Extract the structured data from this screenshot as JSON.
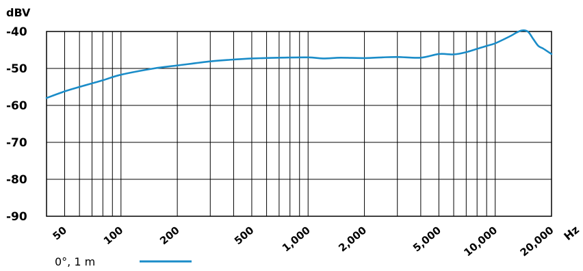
{
  "chart_data": {
    "type": "line",
    "ylabel": "dBV",
    "xlabel": "Hz",
    "xscale": "log",
    "xlim": [
      40,
      20000
    ],
    "ylim": [
      -90,
      -40
    ],
    "yticks": [
      -40,
      -50,
      -60,
      -70,
      -80,
      -90
    ],
    "ytick_labels": [
      "-40",
      "-50",
      "-60",
      "-70",
      "-80",
      "-90"
    ],
    "xticks": [
      50,
      100,
      200,
      500,
      1000,
      2000,
      5000,
      10000,
      20000
    ],
    "xtick_labels": [
      "50",
      "100",
      "200",
      "500",
      "1,000",
      "2,000",
      "5,000",
      "10,000",
      "20,000"
    ],
    "grid": true,
    "line_color": "#1a8cc8",
    "legend_position": "bottom-left",
    "series": [
      {
        "name": "0°, 1 m",
        "x": [
          40,
          50,
          60,
          80,
          100,
          150,
          200,
          300,
          400,
          500,
          700,
          1000,
          1200,
          1500,
          2000,
          2500,
          3000,
          4000,
          5000,
          6000,
          7000,
          8000,
          9000,
          10000,
          12000,
          13000,
          14000,
          15000,
          16000,
          17000,
          18000,
          20000
        ],
        "y": [
          -58,
          -56.2,
          -55,
          -53.2,
          -51.7,
          -50,
          -49.2,
          -48.1,
          -47.6,
          -47.3,
          -47.1,
          -47,
          -47.3,
          -47.1,
          -47.2,
          -47,
          -46.9,
          -47.1,
          -46.1,
          -46.2,
          -45.6,
          -44.7,
          -43.9,
          -43.2,
          -41.3,
          -40.3,
          -39.7,
          -40.1,
          -42.1,
          -43.9,
          -44.6,
          -46.1
        ]
      }
    ]
  }
}
